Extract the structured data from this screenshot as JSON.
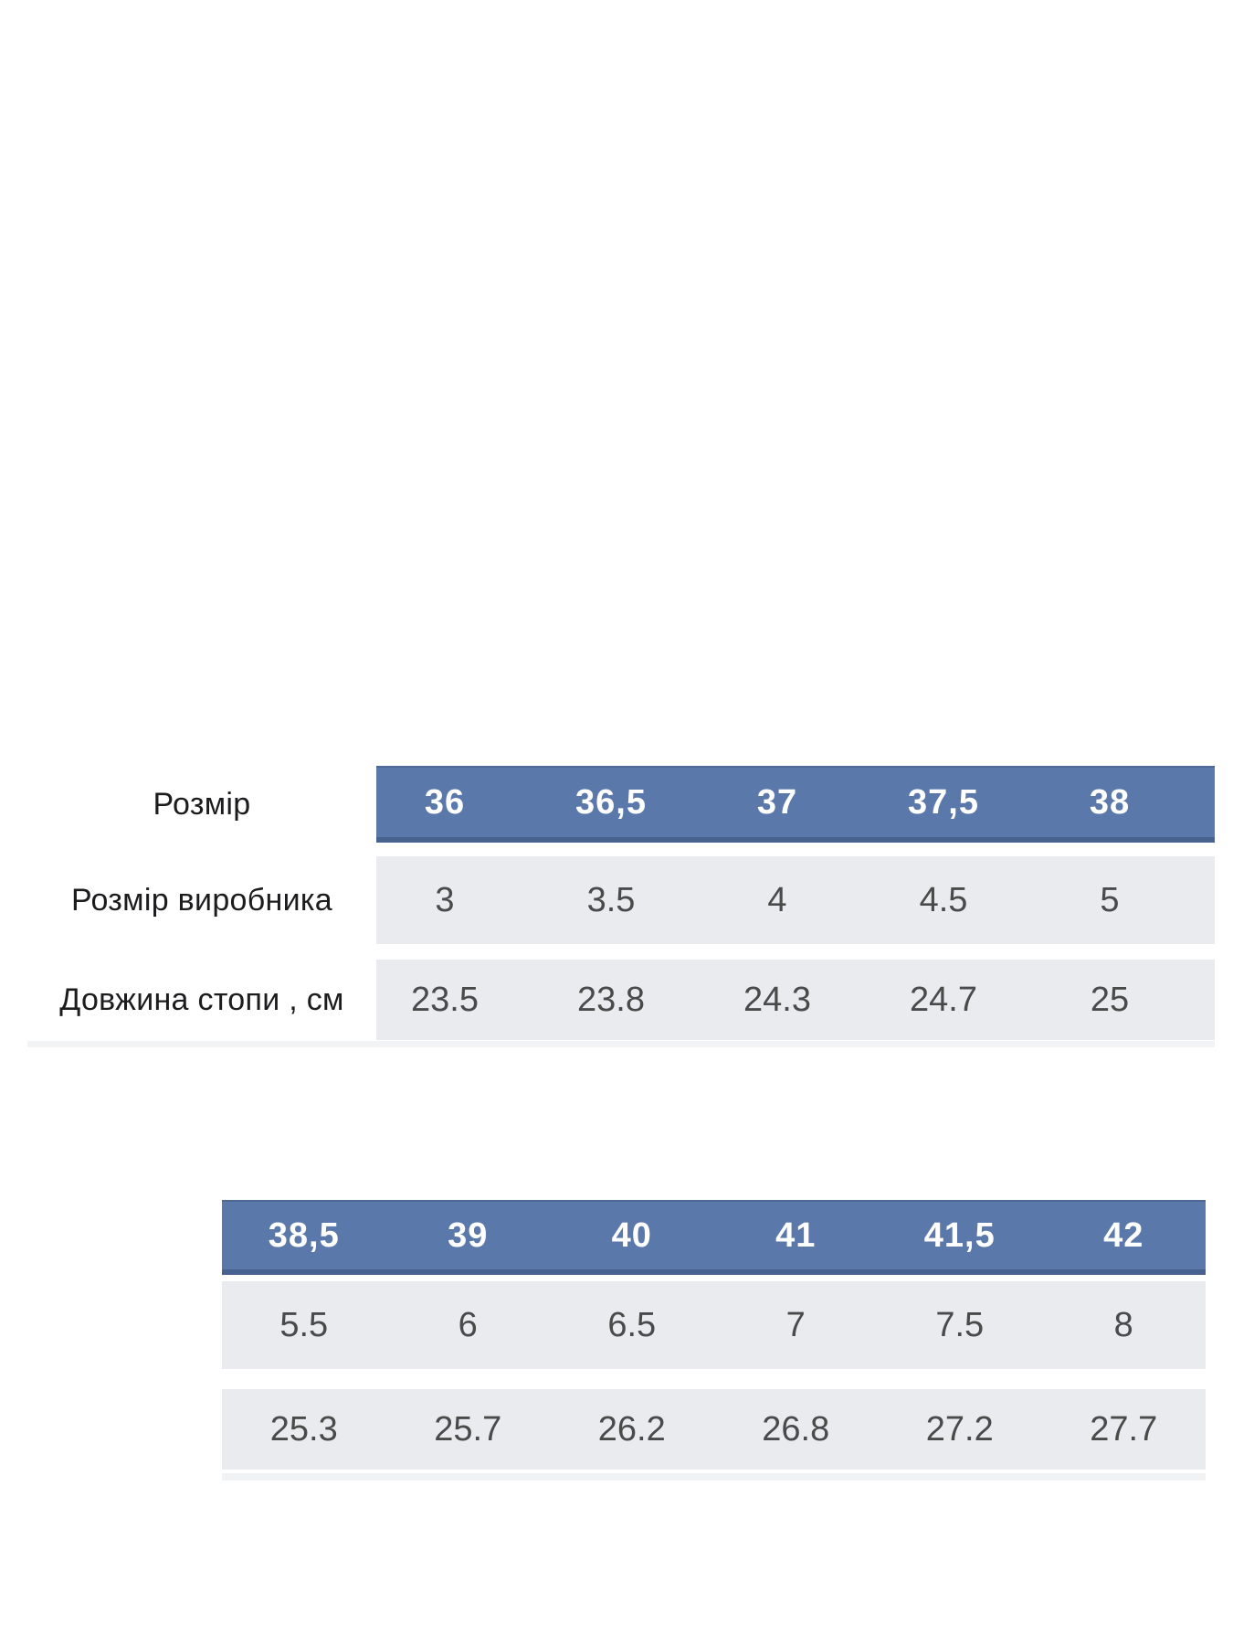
{
  "colors": {
    "page_bg": "#ffffff",
    "header_bg": "#5b78ab",
    "header_edge": "#48628f",
    "header_text": "#ffffff",
    "row_bg": "#e9ebee",
    "row_fade": "#f2f3f5",
    "label_text": "#1c1c1e",
    "value_text": "#4a4a4a"
  },
  "size_chart": {
    "row_labels": {
      "size": "Розмір",
      "manufacturer": "Розмір виробника",
      "foot_length": "Довжина стопи , см"
    },
    "table1": {
      "sizes": [
        "36",
        "36,5",
        "37",
        "37,5",
        "38"
      ],
      "manufacturer_sizes": [
        "3",
        "3.5",
        "4",
        "4.5",
        "5"
      ],
      "foot_length_cm": [
        "23.5",
        "23.8",
        "24.3",
        "24.7",
        "25"
      ]
    },
    "table2": {
      "sizes": [
        "38,5",
        "39",
        "40",
        "41",
        "41,5",
        "42"
      ],
      "manufacturer_sizes": [
        "5.5",
        "6",
        "6.5",
        "7",
        "7.5",
        "8"
      ],
      "foot_length_cm": [
        "25.3",
        "25.7",
        "26.2",
        "26.8",
        "27.2",
        "27.7"
      ]
    }
  }
}
